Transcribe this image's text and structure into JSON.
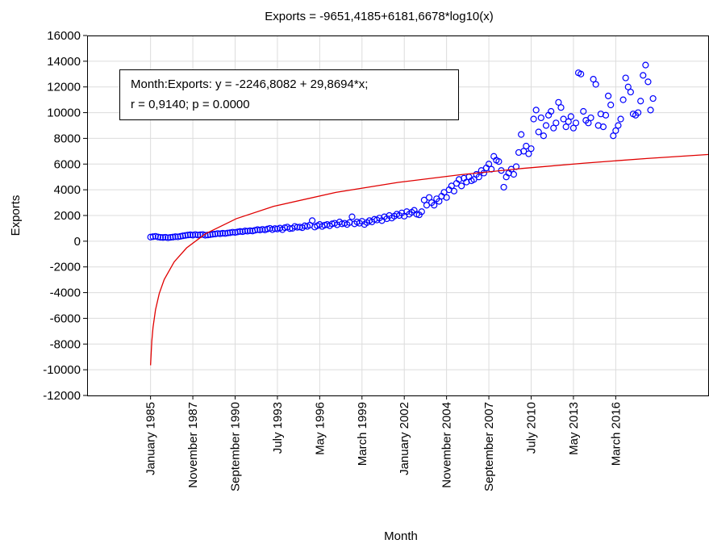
{
  "chart_data": {
    "type": "scatter",
    "title": "Exports = -9651,4185+6181,6678*log10(x)",
    "xlabel": "Month",
    "ylabel": "Exports",
    "annotation": [
      "Month:Exports:    y = -2246,8082 + 29,8694*x;",
      "r = 0,9140; p = 0.0000"
    ],
    "xlim": [
      -50,
      450
    ],
    "ylim": [
      -12000,
      16000
    ],
    "xticks": [
      {
        "value": 1,
        "label": "January 1985"
      },
      {
        "value": 35,
        "label": "November 1987"
      },
      {
        "value": 69,
        "label": "September 1990"
      },
      {
        "value": 103,
        "label": "July 1993"
      },
      {
        "value": 137,
        "label": "May 1996"
      },
      {
        "value": 171,
        "label": "March 1999"
      },
      {
        "value": 205,
        "label": "January 2002"
      },
      {
        "value": 239,
        "label": "November 2004"
      },
      {
        "value": 273,
        "label": "September 2007"
      },
      {
        "value": 307,
        "label": "July 2010"
      },
      {
        "value": 341,
        "label": "May 2013"
      },
      {
        "value": 375,
        "label": "March 2016"
      }
    ],
    "yticks": [
      -12000,
      -10000,
      -8000,
      -6000,
      -4000,
      -2000,
      0,
      2000,
      4000,
      6000,
      8000,
      10000,
      12000,
      14000,
      16000
    ],
    "grid": true,
    "color": "#0000ff",
    "x": [
      1,
      3,
      5,
      7,
      9,
      11,
      13,
      15,
      17,
      19,
      21,
      23,
      25,
      27,
      29,
      31,
      33,
      35,
      37,
      39,
      41,
      43,
      45,
      47,
      49,
      51,
      53,
      55,
      57,
      59,
      61,
      63,
      65,
      67,
      69,
      71,
      73,
      75,
      77,
      79,
      81,
      83,
      85,
      87,
      89,
      91,
      93,
      95,
      97,
      99,
      101,
      103,
      105,
      107,
      109,
      111,
      113,
      115,
      117,
      119,
      121,
      123,
      125,
      127,
      129,
      131,
      133,
      135,
      137,
      139,
      141,
      143,
      145,
      147,
      149,
      151,
      153,
      155,
      157,
      159,
      161,
      163,
      165,
      167,
      169,
      171,
      173,
      175,
      177,
      179,
      181,
      183,
      185,
      187,
      189,
      191,
      193,
      195,
      197,
      199,
      201,
      203,
      205,
      207,
      209,
      211,
      213,
      215,
      217,
      219,
      221,
      223,
      225,
      227,
      229,
      231,
      233,
      235,
      237,
      239,
      241,
      243,
      245,
      247,
      249,
      251,
      253,
      255,
      257,
      259,
      261,
      263,
      265,
      267,
      269,
      271,
      273,
      275,
      277,
      279,
      281,
      283,
      285,
      287,
      289,
      291,
      293,
      295,
      297,
      299,
      301,
      303,
      305,
      307,
      309,
      311,
      313,
      315,
      317,
      319,
      321,
      323,
      325,
      327,
      329,
      331,
      333,
      335,
      337,
      339,
      341,
      343,
      345,
      347,
      349,
      351,
      353,
      355,
      357,
      359,
      361,
      363,
      365,
      367,
      369,
      371,
      373,
      375,
      377,
      379,
      381,
      383,
      385,
      387,
      389,
      391,
      393,
      395,
      397,
      399,
      401,
      403,
      405
    ],
    "values": [
      320,
      350,
      380,
      330,
      300,
      290,
      310,
      270,
      300,
      320,
      350,
      340,
      380,
      420,
      450,
      480,
      500,
      470,
      520,
      480,
      500,
      520,
      460,
      480,
      510,
      540,
      560,
      600,
      580,
      620,
      600,
      640,
      660,
      700,
      680,
      720,
      760,
      740,
      800,
      780,
      820,
      790,
      850,
      900,
      870,
      920,
      880,
      950,
      1000,
      900,
      980,
      950,
      1020,
      900,
      1050,
      1100,
      980,
      1000,
      1150,
      1080,
      1100,
      1050,
      1200,
      1150,
      1250,
      1600,
      1100,
      1200,
      1300,
      1150,
      1250,
      1300,
      1200,
      1350,
      1400,
      1280,
      1500,
      1350,
      1400,
      1300,
      1450,
      1900,
      1350,
      1500,
      1400,
      1550,
      1300,
      1450,
      1600,
      1500,
      1700,
      1650,
      1800,
      1600,
      1900,
      1750,
      2000,
      1800,
      1950,
      2100,
      2000,
      2200,
      1950,
      2300,
      2100,
      2250,
      2400,
      2100,
      2050,
      2300,
      3200,
      2800,
      3400,
      3000,
      2800,
      3300,
      3100,
      3500,
      3800,
      3400,
      4000,
      4300,
      3900,
      4500,
      4800,
      4300,
      4900,
      4600,
      5000,
      4700,
      4800,
      5200,
      5000,
      5500,
      5300,
      5700,
      6000,
      5600,
      6600,
      6300,
      6200,
      5500,
      4200,
      5000,
      5300,
      5600,
      5200,
      5800,
      6900,
      8300,
      7000,
      7400,
      6800,
      7200,
      9500,
      10200,
      8500,
      9600,
      8200,
      9000,
      9800,
      10100,
      8800,
      9200,
      10800,
      10400,
      9500,
      8900,
      9300,
      9700,
      8800,
      9200,
      13100,
      13000,
      10100,
      9400,
      9200,
      9600,
      12600,
      12200,
      9000,
      9900,
      8900,
      9800,
      11300,
      10600,
      8200,
      8600,
      9000,
      9500,
      11000,
      12700,
      12000,
      11600,
      9900,
      9800,
      10000,
      10900,
      12900,
      13700,
      12400,
      10200,
      11100
    ],
    "fit": {
      "color": "#e00000",
      "x": [
        1,
        2,
        3,
        5,
        8,
        12,
        20,
        30,
        45,
        70,
        100,
        150,
        200,
        250,
        300,
        350,
        400,
        450
      ],
      "values": [
        -9651,
        -7790,
        -6702,
        -5331,
        -4069,
        -2980,
        -1609,
        -520,
        568,
        1754,
        2712,
        3800,
        4573,
        5172,
        5661,
        6075,
        6434,
        6750
      ]
    }
  }
}
